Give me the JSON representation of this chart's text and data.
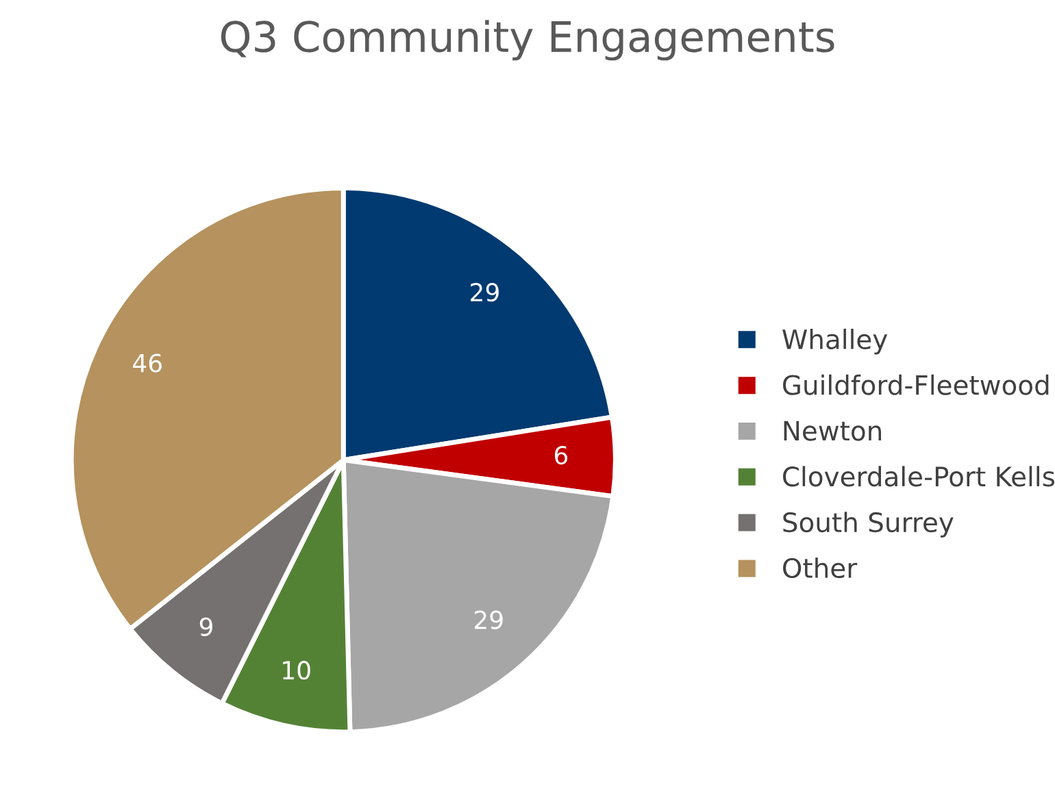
{
  "chart_data": {
    "type": "pie",
    "title": "Q3 Community Engagements",
    "categories": [
      "Whalley",
      "Guildford-Fleetwood",
      "Newton",
      "Cloverdale-Port Kells",
      "South Surrey",
      "Other"
    ],
    "values": [
      29,
      6,
      29,
      10,
      9,
      46
    ],
    "colors": [
      "#003a70",
      "#c00000",
      "#a6a6a6",
      "#548235",
      "#767171",
      "#b5925e"
    ],
    "data_labels": true,
    "legend": "right"
  }
}
